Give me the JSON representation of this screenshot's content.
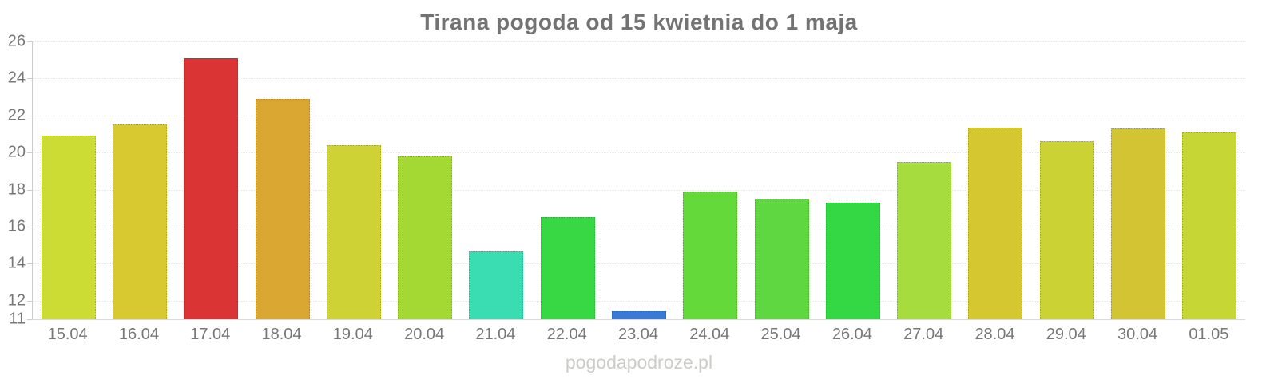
{
  "title": "Tirana pogoda od 15 kwietnia do 1 maja",
  "watermark": "pogodapodroze.pl",
  "chart_data": {
    "type": "bar",
    "title": "Tirana pogoda od 15 kwietnia do 1 maja",
    "xlabel": "",
    "ylabel": "",
    "ylim": [
      11,
      26
    ],
    "yticks": [
      11,
      12,
      14,
      16,
      18,
      20,
      22,
      24,
      26
    ],
    "grid": "horizontal-dotted",
    "legend": "none",
    "categories": [
      "15.04",
      "16.04",
      "17.04",
      "18.04",
      "19.04",
      "20.04",
      "21.04",
      "22.04",
      "23.04",
      "24.04",
      "25.04",
      "26.04",
      "27.04",
      "28.04",
      "29.04",
      "30.04",
      "01.05"
    ],
    "values": [
      20.9,
      21.5,
      25.1,
      22.9,
      20.4,
      19.8,
      14.65,
      16.5,
      11.45,
      17.9,
      17.5,
      17.3,
      19.5,
      21.35,
      20.6,
      21.3,
      21.1
    ],
    "bar_colors": [
      "#ccdc35",
      "#d9c930",
      "#db3434",
      "#dba733",
      "#ced234",
      "#a4d934",
      "#3adcb2",
      "#37d844",
      "#3b79d6",
      "#63d93a",
      "#5fd741",
      "#33d844",
      "#a6dc3d",
      "#d4c72f",
      "#cbd334",
      "#d3c434",
      "#c6d634"
    ]
  },
  "style_colors": {
    "title_text": "#737373",
    "axis_label_text": "#777777",
    "axis_line": "#cccccc",
    "gridline": "#e6e6e6",
    "watermark_text": "#cbcbc8",
    "background": "#ffffff"
  }
}
